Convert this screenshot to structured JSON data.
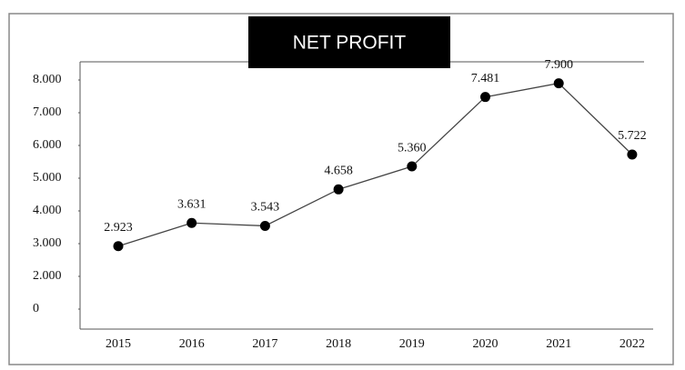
{
  "chart_data": {
    "type": "line",
    "title": "NET PROFIT",
    "categories": [
      "2015",
      "2016",
      "2017",
      "2018",
      "2019",
      "2020",
      "2021",
      "2022"
    ],
    "values": [
      2923,
      3631,
      3543,
      4658,
      5360,
      7481,
      7900,
      5722
    ],
    "value_labels": [
      "2.923",
      "3.631",
      "3.543",
      "4.658",
      "5.360",
      "7.481",
      "7.900",
      "5.722"
    ],
    "color": "#000000",
    "ylim": [
      0,
      8000
    ],
    "yticks": [
      0,
      {
        "value": 2000,
        "label": "2.000"
      },
      {
        "value": 3000,
        "label": "3.000"
      },
      {
        "value": 4000,
        "label": "4.000"
      },
      {
        "value": 5000,
        "label": "5.000"
      },
      {
        "value": 6000,
        "label": "6.000"
      },
      {
        "value": 7000,
        "label": "7.000"
      },
      {
        "value": 8000,
        "label": "8.000"
      }
    ],
    "grid": false
  }
}
